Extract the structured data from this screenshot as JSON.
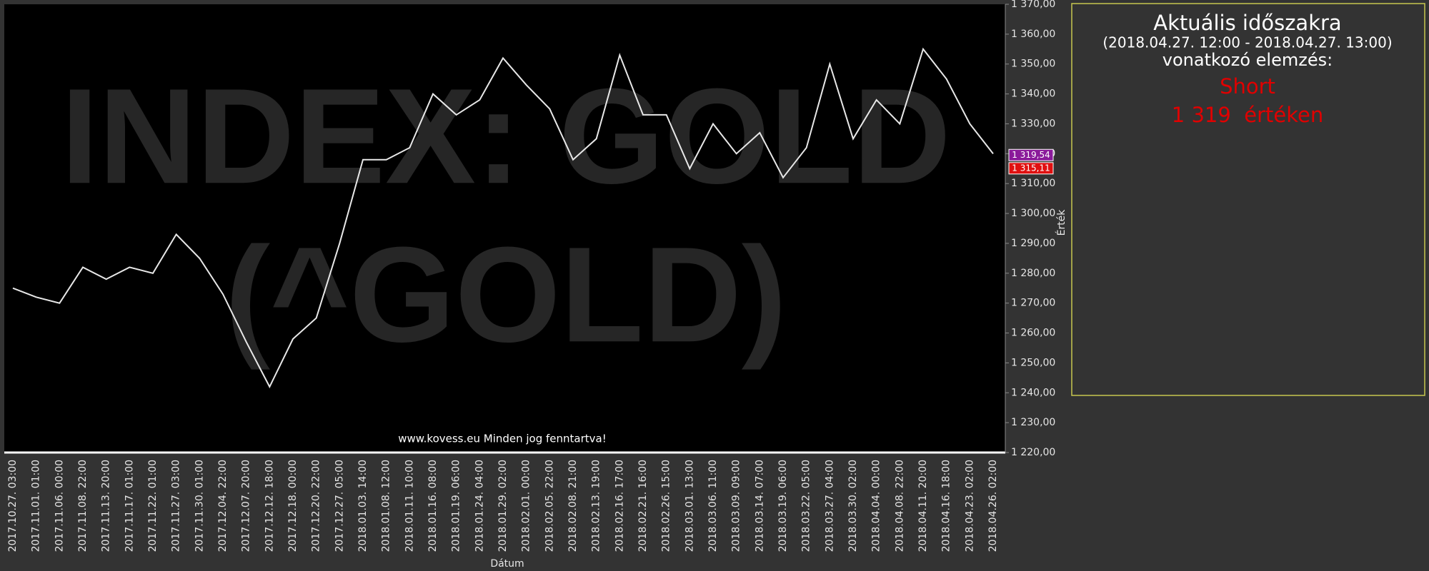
{
  "chart_data": {
    "type": "line",
    "watermark": [
      "INDEX: GOLD",
      "(^GOLD)"
    ],
    "footer": "www.kovess.eu Minden jog fenntartva!",
    "x_label": "Dátum",
    "y_label": "Érték",
    "color": "#e8e8e8",
    "categories": [
      "2017.10.27. 03:00",
      "2017.11.01. 01:00",
      "2017.11.06. 00:00",
      "2017.11.08. 22:00",
      "2017.11.13. 20:00",
      "2017.11.17. 01:00",
      "2017.11.22. 01:00",
      "2017.11.27. 03:00",
      "2017.11.30. 01:00",
      "2017.12.04. 22:00",
      "2017.12.07. 20:00",
      "2017.12.12. 18:00",
      "2017.12.18. 00:00",
      "2017.12.20. 22:00",
      "2017.12.27. 05:00",
      "2018.01.03. 14:00",
      "2018.01.08. 12:00",
      "2018.01.11. 10:00",
      "2018.01.16. 08:00",
      "2018.01.19. 06:00",
      "2018.01.24. 04:00",
      "2018.01.29. 02:00",
      "2018.02.01. 00:00",
      "2018.02.05. 22:00",
      "2018.02.08. 21:00",
      "2018.02.13. 19:00",
      "2018.02.16. 17:00",
      "2018.02.21. 16:00",
      "2018.02.26. 15:00",
      "2018.03.01. 13:00",
      "2018.03.06. 11:00",
      "2018.03.09. 09:00",
      "2018.03.14. 07:00",
      "2018.03.19. 06:00",
      "2018.03.22. 05:00",
      "2018.03.27. 04:00",
      "2018.03.30. 02:00",
      "2018.04.04. 00:00",
      "2018.04.08. 22:00",
      "2018.04.11. 20:00",
      "2018.04.16. 18:00",
      "2018.04.23. 02:00",
      "2018.04.26. 02:00"
    ],
    "values": [
      1275,
      1272,
      1270,
      1282,
      1278,
      1282,
      1280,
      1293,
      1285,
      1273,
      1257,
      1242,
      1258,
      1265,
      1290,
      1318,
      1318,
      1322,
      1340,
      1333,
      1338,
      1352,
      1343,
      1335,
      1318,
      1325,
      1353,
      1333,
      1333,
      1315,
      1330,
      1320,
      1327,
      1312,
      1322,
      1350,
      1325,
      1338,
      1330,
      1355,
      1345,
      1330,
      1320
    ],
    "ylim": [
      1220,
      1370
    ],
    "yticks": [
      {
        "value": 1220,
        "label": "1 220,00"
      },
      {
        "value": 1230,
        "label": "1 230,00"
      },
      {
        "value": 1240,
        "label": "1 240,00"
      },
      {
        "value": 1250,
        "label": "1 250,00"
      },
      {
        "value": 1260,
        "label": "1 260,00"
      },
      {
        "value": 1270,
        "label": "1 270,00"
      },
      {
        "value": 1280,
        "label": "1 280,00"
      },
      {
        "value": 1290,
        "label": "1 290,00"
      },
      {
        "value": 1300,
        "label": "1 300,00"
      },
      {
        "value": 1310,
        "label": "1 310,00"
      },
      {
        "value": 1320,
        "label": "1 320,00"
      },
      {
        "value": 1330,
        "label": "1 330,00"
      },
      {
        "value": 1340,
        "label": "1 340,00"
      },
      {
        "value": 1350,
        "label": "1 350,00"
      },
      {
        "value": 1360,
        "label": "1 360,00"
      },
      {
        "value": 1370,
        "label": "1 370,00"
      }
    ],
    "price_tags": [
      {
        "value": 1319.54,
        "label": "1 319,54",
        "color": "#8a1a9a"
      },
      {
        "value": 1315.11,
        "label": "1 315,11",
        "color": "#e01010"
      }
    ]
  },
  "panel": {
    "title": "Aktuális időszakra",
    "period": "(2018.04.27. 12:00 - 2018.04.27. 13:00)",
    "subtitle": "vonatkozó elemzés:",
    "signal": "Short",
    "level": "1 319  értéken"
  }
}
